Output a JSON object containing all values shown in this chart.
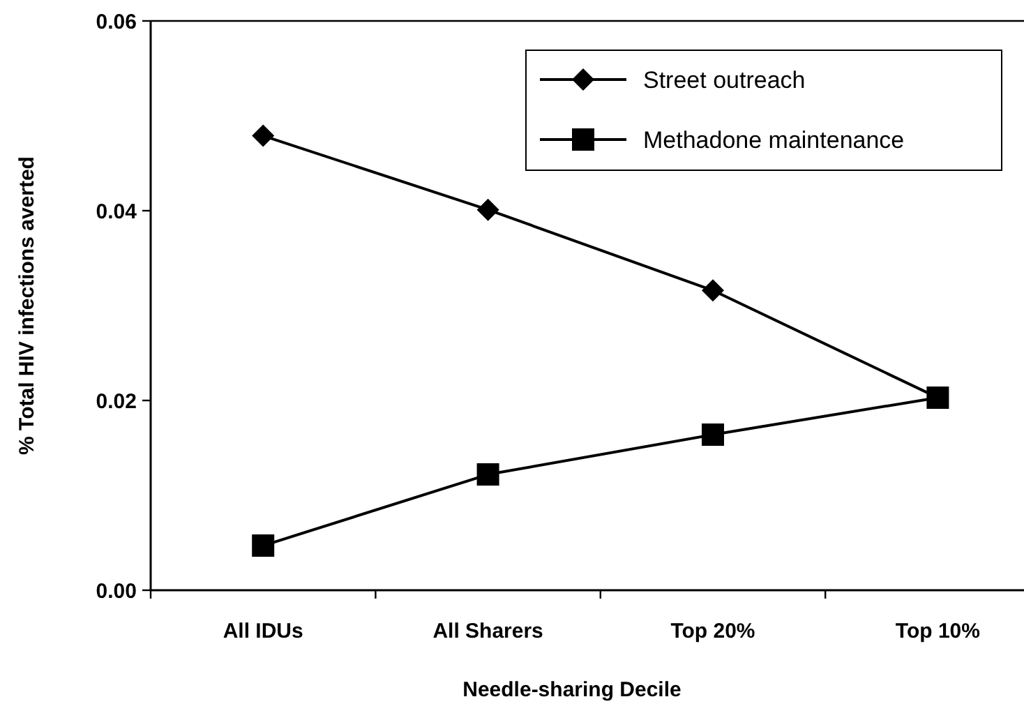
{
  "chart_data": {
    "type": "line",
    "xlabel": "Needle-sharing Decile",
    "ylabel": "% Total  HIV infections averted",
    "categories": [
      "All IDUs",
      "All Sharers",
      "Top 20%",
      "Top 10%"
    ],
    "series": [
      {
        "name": "Street outreach",
        "color": "#000000",
        "marker": "diamond",
        "values": [
          0.0479,
          0.0401,
          0.0316,
          0.0203
        ]
      },
      {
        "name": "Methadone maintenance",
        "color": "#000000",
        "marker": "square",
        "values": [
          0.0047,
          0.0122,
          0.0164,
          0.0203
        ]
      }
    ],
    "ylim": [
      0,
      0.06
    ],
    "yticks": [
      {
        "value": 0,
        "label": "0.00"
      },
      {
        "value": 0.02,
        "label": "0.02"
      },
      {
        "value": 0.04,
        "label": "0.04"
      },
      {
        "value": 0.06,
        "label": "0.06"
      }
    ],
    "grid": false,
    "legend": "top right",
    "line_style": "solid"
  }
}
